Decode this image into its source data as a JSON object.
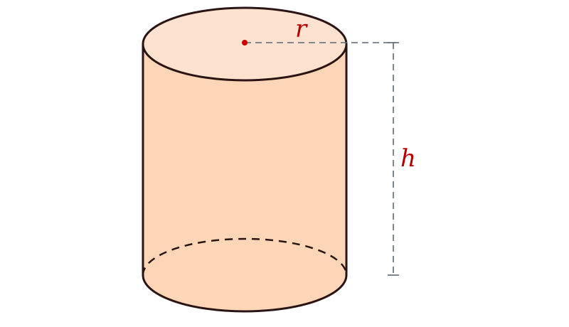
{
  "figure": {
    "subject": "cylinder",
    "labels": {
      "radius": "r",
      "height": "h"
    }
  },
  "colors": {
    "fill_top": "#fde3cf",
    "fill_side": "#fdd6b8",
    "stroke": "#2a1414",
    "label": "#b30000",
    "guide": "#5a6772",
    "center_dot": "#cc0000"
  }
}
